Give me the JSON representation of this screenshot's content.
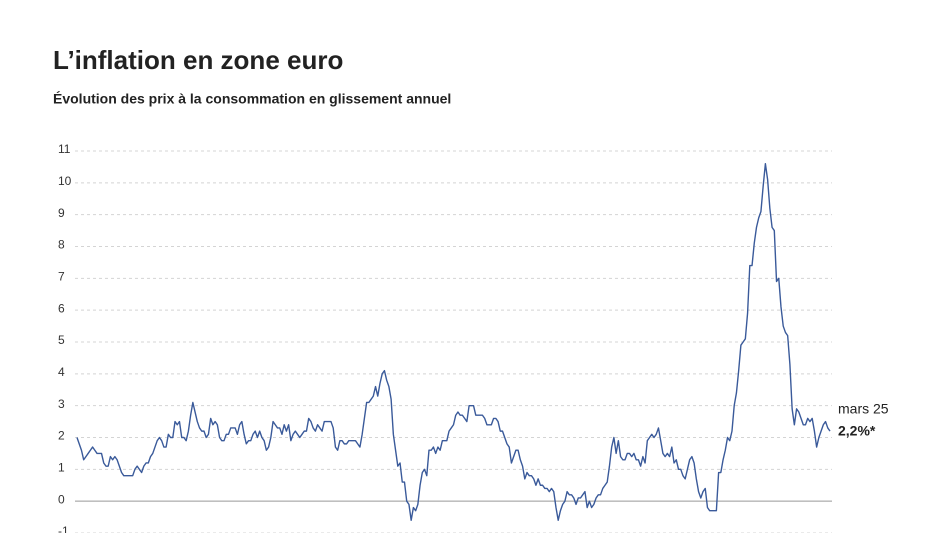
{
  "chart_data": {
    "type": "line",
    "title": "L’inflation en zone euro",
    "subtitle": "Évolution des prix à la consommation en glissement annuel",
    "color": "#3a5a9a",
    "grid": true,
    "ylim": [
      -1,
      11
    ],
    "yticks": [
      -1,
      0,
      1,
      2,
      3,
      4,
      5,
      6,
      7,
      8,
      9,
      10,
      11
    ],
    "annotations": [
      "mars 25",
      "2,2%*"
    ],
    "values": [
      2.0,
      1.8,
      1.6,
      1.3,
      1.4,
      1.5,
      1.6,
      1.7,
      1.6,
      1.5,
      1.5,
      1.5,
      1.2,
      1.1,
      1.1,
      1.4,
      1.3,
      1.4,
      1.3,
      1.1,
      0.9,
      0.8,
      0.8,
      0.8,
      0.8,
      0.8,
      1.0,
      1.1,
      1.0,
      0.9,
      1.1,
      1.2,
      1.2,
      1.4,
      1.5,
      1.7,
      1.9,
      2.0,
      1.9,
      1.7,
      1.7,
      2.1,
      2.0,
      2.0,
      2.5,
      2.4,
      2.5,
      2.0,
      2.0,
      1.9,
      2.2,
      2.7,
      3.1,
      2.8,
      2.5,
      2.3,
      2.2,
      2.2,
      2.0,
      2.1,
      2.6,
      2.4,
      2.5,
      2.4,
      2.0,
      1.9,
      1.9,
      2.1,
      2.1,
      2.3,
      2.3,
      2.3,
      2.1,
      2.4,
      2.5,
      2.1,
      1.8,
      1.9,
      1.9,
      2.1,
      2.2,
      2.0,
      2.2,
      2.0,
      1.9,
      1.6,
      1.7,
      2.0,
      2.5,
      2.4,
      2.3,
      2.3,
      2.1,
      2.4,
      2.2,
      2.4,
      1.9,
      2.1,
      2.2,
      2.1,
      2.0,
      2.1,
      2.2,
      2.2,
      2.6,
      2.5,
      2.3,
      2.2,
      2.4,
      2.3,
      2.2,
      2.5,
      2.5,
      2.5,
      2.5,
      2.3,
      1.7,
      1.6,
      1.9,
      1.9,
      1.8,
      1.8,
      1.9,
      1.9,
      1.9,
      1.9,
      1.8,
      1.7,
      2.1,
      2.6,
      3.1,
      3.1,
      3.2,
      3.3,
      3.6,
      3.3,
      3.7,
      4.0,
      4.1,
      3.8,
      3.6,
      3.2,
      2.1,
      1.6,
      1.1,
      1.2,
      0.6,
      0.6,
      0.0,
      -0.1,
      -0.6,
      -0.2,
      -0.3,
      -0.1,
      0.5,
      0.9,
      1.0,
      0.8,
      1.6,
      1.6,
      1.7,
      1.5,
      1.7,
      1.6,
      1.9,
      1.9,
      1.9,
      2.2,
      2.3,
      2.4,
      2.7,
      2.8,
      2.7,
      2.7,
      2.6,
      2.5,
      3.0,
      3.0,
      3.0,
      2.7,
      2.7,
      2.7,
      2.7,
      2.6,
      2.4,
      2.4,
      2.4,
      2.6,
      2.6,
      2.5,
      2.2,
      2.2,
      2.0,
      1.8,
      1.7,
      1.2,
      1.4,
      1.6,
      1.6,
      1.3,
      1.1,
      0.7,
      0.9,
      0.8,
      0.8,
      0.7,
      0.5,
      0.7,
      0.5,
      0.5,
      0.4,
      0.4,
      0.3,
      0.4,
      0.3,
      -0.2,
      -0.6,
      -0.3,
      -0.1,
      0.0,
      0.3,
      0.2,
      0.2,
      0.1,
      -0.1,
      0.1,
      0.1,
      0.2,
      0.3,
      -0.2,
      0.0,
      -0.2,
      -0.1,
      0.1,
      0.2,
      0.2,
      0.4,
      0.5,
      0.6,
      1.1,
      1.7,
      2.0,
      1.5,
      1.9,
      1.4,
      1.3,
      1.3,
      1.5,
      1.5,
      1.4,
      1.5,
      1.3,
      1.3,
      1.1,
      1.4,
      1.2,
      1.9,
      2.0,
      2.1,
      2.0,
      2.1,
      2.3,
      1.9,
      1.5,
      1.4,
      1.5,
      1.4,
      1.7,
      1.2,
      1.3,
      1.0,
      1.0,
      0.8,
      0.7,
      1.0,
      1.3,
      1.4,
      1.2,
      0.7,
      0.3,
      0.1,
      0.3,
      0.4,
      -0.2,
      -0.3,
      -0.3,
      -0.3,
      -0.3,
      0.9,
      0.9,
      1.3,
      1.6,
      2.0,
      1.9,
      2.2,
      3.0,
      3.4,
      4.1,
      4.9,
      5.0,
      5.1,
      5.9,
      7.4,
      7.4,
      8.1,
      8.6,
      8.9,
      9.1,
      9.9,
      10.6,
      10.1,
      9.2,
      8.6,
      8.5,
      6.9,
      7.0,
      6.1,
      5.5,
      5.3,
      5.2,
      4.3,
      2.9,
      2.4,
      2.9,
      2.8,
      2.6,
      2.4,
      2.4,
      2.6,
      2.5,
      2.6,
      2.2,
      1.7,
      2.0,
      2.2,
      2.4,
      2.5,
      2.3,
      2.2
    ]
  }
}
